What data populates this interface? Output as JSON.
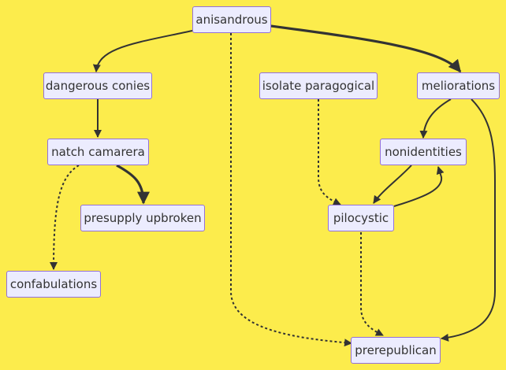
{
  "colors": {
    "background": "#fcec4c",
    "node_fill": "#ececfe",
    "node_border": "#9370db",
    "edge": "#333333",
    "text": "#333333"
  },
  "nodes": {
    "anisandrous": "anisandrous",
    "dangerous_conies": "dangerous conies",
    "isolate_paragogical": "isolate paragogical",
    "meliorations": "meliorations",
    "natch_camarera": "natch camarera",
    "nonidentities": "nonidentities",
    "presupply_upbroken": "presupply upbroken",
    "pilocystic": "pilocystic",
    "confabulations": "confabulations",
    "prerepublican": "prerepublican"
  },
  "edges": [
    {
      "from": "anisandrous",
      "to": "dangerous conies",
      "style": "normal"
    },
    {
      "from": "anisandrous",
      "to": "meliorations",
      "style": "thick"
    },
    {
      "from": "anisandrous",
      "to": "prerepublican",
      "style": "dotted"
    },
    {
      "from": "dangerous conies",
      "to": "natch camarera",
      "style": "normal"
    },
    {
      "from": "natch camarera",
      "to": "presupply upbroken",
      "style": "thick"
    },
    {
      "from": "natch camarera",
      "to": "confabulations",
      "style": "dotted"
    },
    {
      "from": "isolate paragogical",
      "to": "pilocystic",
      "style": "dotted"
    },
    {
      "from": "meliorations",
      "to": "nonidentities",
      "style": "normal"
    },
    {
      "from": "meliorations",
      "to": "prerepublican",
      "style": "normal"
    },
    {
      "from": "nonidentities",
      "to": "pilocystic",
      "style": "normal"
    },
    {
      "from": "pilocystic",
      "to": "nonidentities",
      "style": "normal"
    },
    {
      "from": "pilocystic",
      "to": "prerepublican",
      "style": "dotted"
    }
  ]
}
